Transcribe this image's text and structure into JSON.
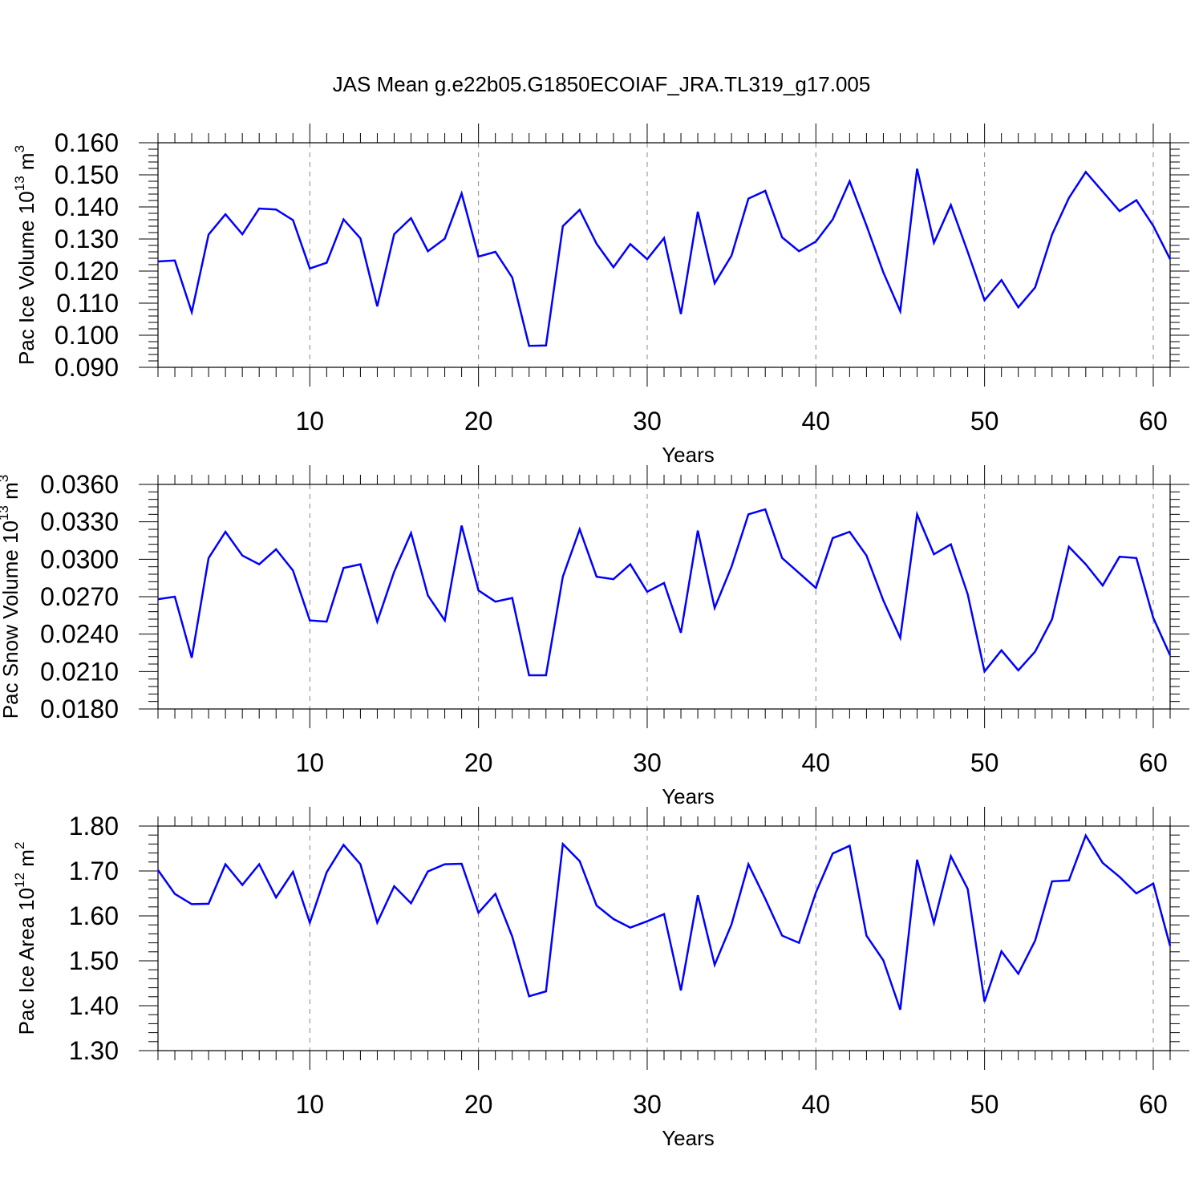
{
  "title": "JAS Mean g.e22b05.G1850ECOIAF_JRA.TL319_g17.005",
  "colors": {
    "line": "#0000ff",
    "axis": "#000000",
    "grid": "#888888"
  },
  "chart_data": [
    {
      "type": "line",
      "ylabel_main": "Pac Ice Volume 10",
      "ylabel_exp": "13",
      "ylabel_unit": " m",
      "ylabel_unit_exp": "3",
      "xlabel": "Years",
      "xlim": [
        1,
        61
      ],
      "xticks": [
        10,
        20,
        30,
        40,
        50,
        60
      ],
      "ylim": [
        0.09,
        0.16
      ],
      "yticks": [
        0.09,
        0.1,
        0.11,
        0.12,
        0.13,
        0.14,
        0.15,
        0.16
      ],
      "yticklabels": [
        "0.090",
        "0.100",
        "0.110",
        "0.120",
        "0.130",
        "0.140",
        "0.150",
        "0.160"
      ],
      "x": [
        1,
        2,
        3,
        4,
        5,
        6,
        7,
        8,
        9,
        10,
        11,
        12,
        13,
        14,
        15,
        16,
        17,
        18,
        19,
        20,
        21,
        22,
        23,
        24,
        25,
        26,
        27,
        28,
        29,
        30,
        31,
        32,
        33,
        34,
        35,
        36,
        37,
        38,
        39,
        40,
        41,
        42,
        43,
        44,
        45,
        46,
        47,
        48,
        49,
        50,
        51,
        52,
        53,
        54,
        55,
        56,
        57,
        58,
        59,
        60,
        61
      ],
      "values": [
        0.123,
        0.1233,
        0.1072,
        0.1314,
        0.1377,
        0.1315,
        0.1395,
        0.1392,
        0.1359,
        0.1208,
        0.1226,
        0.1361,
        0.1302,
        0.109,
        0.1315,
        0.1365,
        0.1262,
        0.1301,
        0.1442,
        0.1245,
        0.126,
        0.118,
        0.0967,
        0.0968,
        0.134,
        0.1391,
        0.1285,
        0.1212,
        0.1284,
        0.1237,
        0.1303,
        0.1066,
        0.1385,
        0.1162,
        0.1248,
        0.1426,
        0.145,
        0.1305,
        0.1262,
        0.1292,
        0.1361,
        0.148,
        0.1342,
        0.1196,
        0.1075,
        0.1519,
        0.1288,
        0.1406,
        0.126,
        0.1109,
        0.1172,
        0.1087,
        0.1149,
        0.1314,
        0.1428,
        0.1509,
        0.1448,
        0.1387,
        0.1421,
        0.1341,
        0.1237
      ]
    },
    {
      "type": "line",
      "ylabel_main": "Pac Snow Volume 10",
      "ylabel_exp": "13",
      "ylabel_unit": " m",
      "ylabel_unit_exp": "3",
      "xlabel": "Years",
      "xlim": [
        1,
        61
      ],
      "xticks": [
        10,
        20,
        30,
        40,
        50,
        60
      ],
      "ylim": [
        0.018,
        0.036
      ],
      "yticks": [
        0.018,
        0.021,
        0.024,
        0.027,
        0.03,
        0.033,
        0.036
      ],
      "yticklabels": [
        "0.0180",
        "0.0210",
        "0.0240",
        "0.0270",
        "0.0300",
        "0.0330",
        "0.0360"
      ],
      "x": [
        1,
        2,
        3,
        4,
        5,
        6,
        7,
        8,
        9,
        10,
        11,
        12,
        13,
        14,
        15,
        16,
        17,
        18,
        19,
        20,
        21,
        22,
        23,
        24,
        25,
        26,
        27,
        28,
        29,
        30,
        31,
        32,
        33,
        34,
        35,
        36,
        37,
        38,
        39,
        40,
        41,
        42,
        43,
        44,
        45,
        46,
        47,
        48,
        49,
        50,
        51,
        52,
        53,
        54,
        55,
        56,
        57,
        58,
        59,
        60,
        61
      ],
      "values": [
        0.0268,
        0.027,
        0.0221,
        0.0301,
        0.0322,
        0.0303,
        0.0296,
        0.0308,
        0.0291,
        0.0251,
        0.025,
        0.0293,
        0.0296,
        0.025,
        0.029,
        0.0321,
        0.0271,
        0.0251,
        0.0327,
        0.0275,
        0.0266,
        0.0269,
        0.0207,
        0.0207,
        0.0286,
        0.0324,
        0.0286,
        0.0284,
        0.0296,
        0.0274,
        0.0281,
        0.0241,
        0.0323,
        0.0261,
        0.0294,
        0.0336,
        0.034,
        0.0301,
        0.0289,
        0.0277,
        0.0317,
        0.0322,
        0.0303,
        0.0267,
        0.0237,
        0.0336,
        0.0304,
        0.0312,
        0.0272,
        0.021,
        0.0227,
        0.0211,
        0.0226,
        0.0252,
        0.031,
        0.0296,
        0.0279,
        0.0302,
        0.0301,
        0.0253,
        0.0223
      ]
    },
    {
      "type": "line",
      "ylabel_main": "Pac Ice Area 10",
      "ylabel_exp": "12",
      "ylabel_unit": " m",
      "ylabel_unit_exp": "2",
      "xlabel": "Years",
      "xlim": [
        1,
        61
      ],
      "xticks": [
        10,
        20,
        30,
        40,
        50,
        60
      ],
      "ylim": [
        1.3,
        1.8
      ],
      "yticks": [
        1.3,
        1.4,
        1.5,
        1.6,
        1.7,
        1.8
      ],
      "yticklabels": [
        "1.30",
        "1.40",
        "1.50",
        "1.60",
        "1.70",
        "1.80"
      ],
      "x": [
        1,
        2,
        3,
        4,
        5,
        6,
        7,
        8,
        9,
        10,
        11,
        12,
        13,
        14,
        15,
        16,
        17,
        18,
        19,
        20,
        21,
        22,
        23,
        24,
        25,
        26,
        27,
        28,
        29,
        30,
        31,
        32,
        33,
        34,
        35,
        36,
        37,
        38,
        39,
        40,
        41,
        42,
        43,
        44,
        45,
        46,
        47,
        48,
        49,
        50,
        51,
        52,
        53,
        54,
        55,
        56,
        57,
        58,
        59,
        60,
        61
      ],
      "values": [
        1.702,
        1.649,
        1.626,
        1.627,
        1.715,
        1.669,
        1.715,
        1.641,
        1.698,
        1.585,
        1.697,
        1.758,
        1.715,
        1.585,
        1.666,
        1.628,
        1.699,
        1.715,
        1.716,
        1.607,
        1.649,
        1.554,
        1.421,
        1.432,
        1.76,
        1.722,
        1.623,
        1.593,
        1.574,
        1.588,
        1.604,
        1.434,
        1.646,
        1.491,
        1.581,
        1.715,
        1.638,
        1.556,
        1.54,
        1.652,
        1.739,
        1.756,
        1.556,
        1.501,
        1.391,
        1.725,
        1.584,
        1.733,
        1.66,
        1.409,
        1.521,
        1.471,
        1.545,
        1.677,
        1.679,
        1.779,
        1.718,
        1.687,
        1.65,
        1.672,
        1.533
      ]
    }
  ]
}
